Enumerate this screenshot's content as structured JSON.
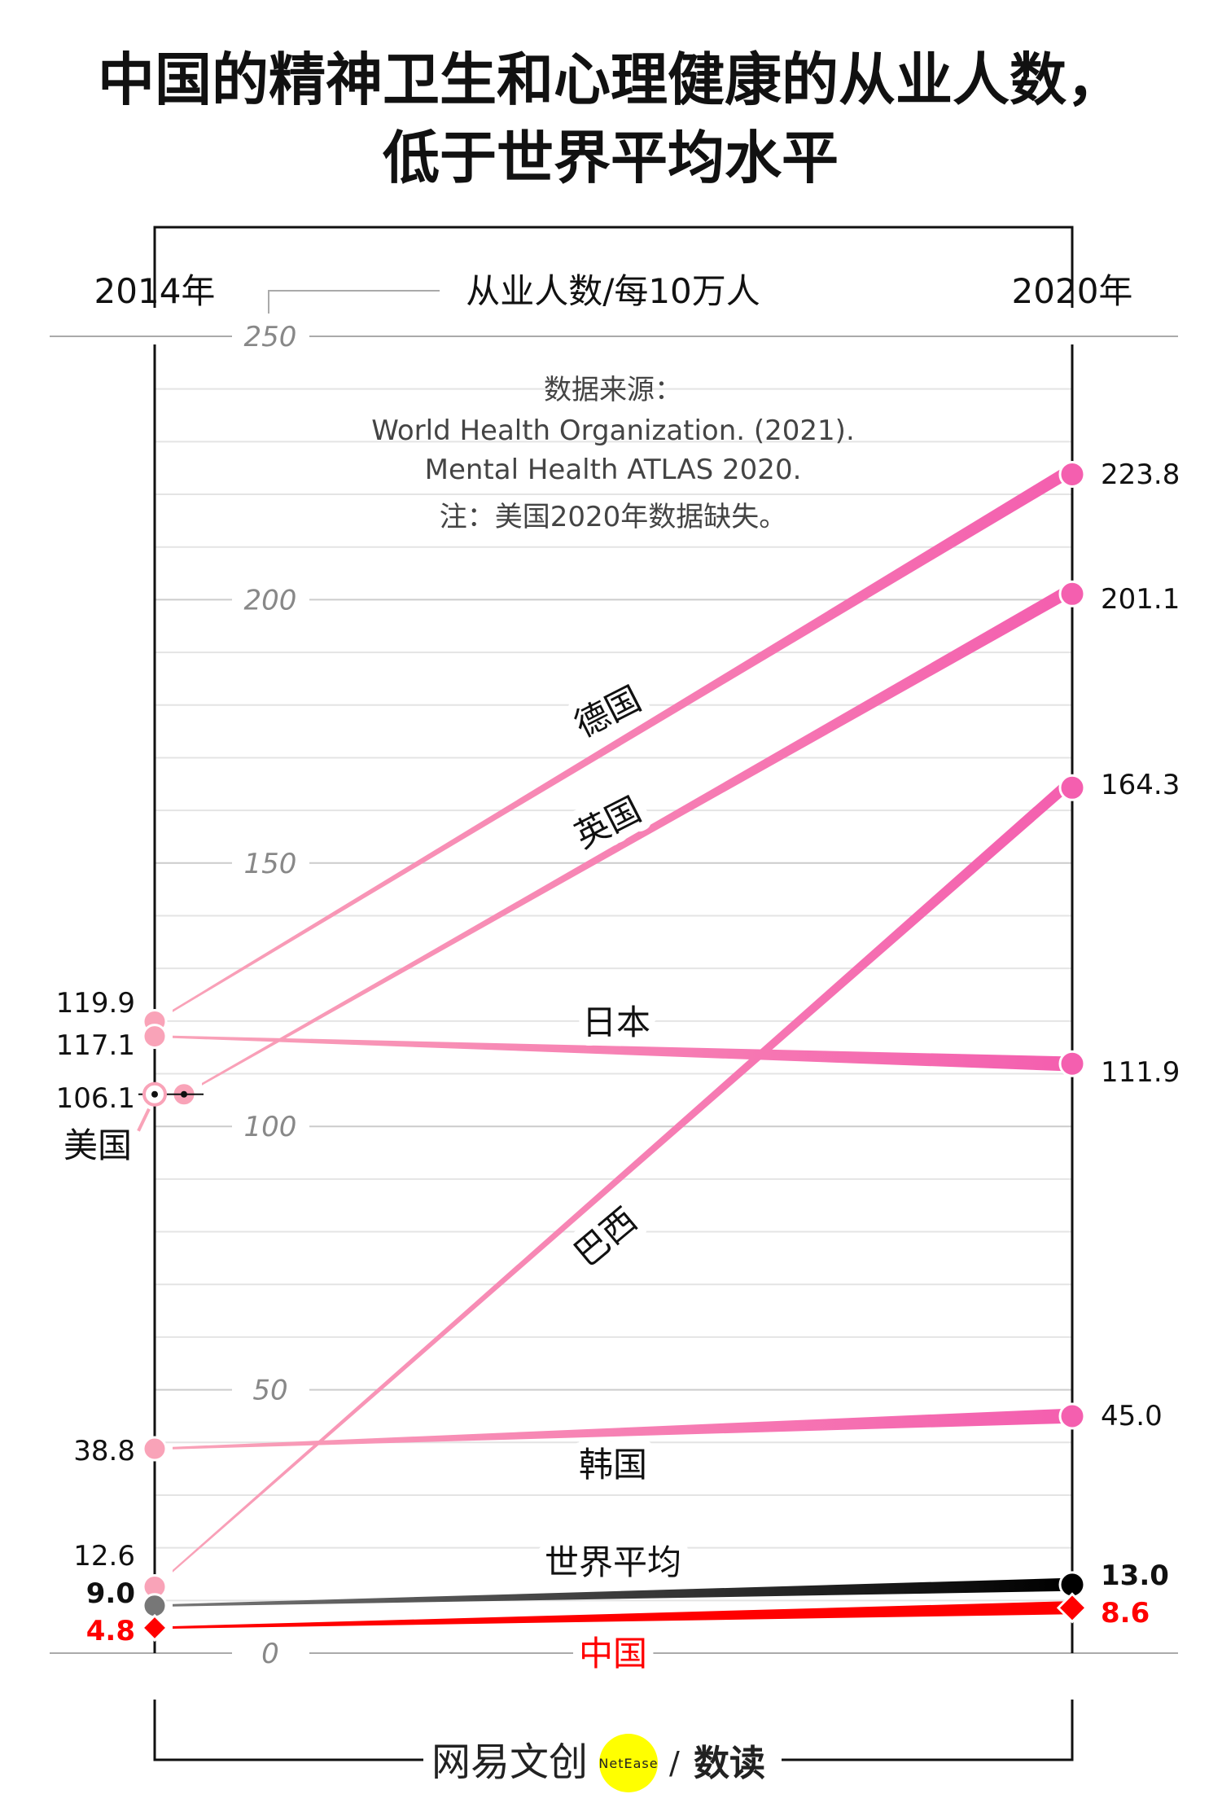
{
  "title": {
    "line1": "中国的精神卫生和心理健康的从业人数，",
    "line2": "低于世界平均水平"
  },
  "header": {
    "left_year": "2014年",
    "unit": "从业人数/每10万人",
    "right_year": "2020年"
  },
  "source": {
    "line1": "数据来源：",
    "line2": "World Health Organization. (2021).",
    "line3": "Mental Health ATLAS 2020.",
    "line4": "注：美国2020年数据缺失。"
  },
  "logo": {
    "brand": "网易文创",
    "badge": "NetEase",
    "slash": "/",
    "section": "数读"
  },
  "colors": {
    "pink_light": "#f9a3b8",
    "pink_dark": "#f45faf",
    "world": "#000000",
    "china": "#ff0000",
    "axis": "#111111",
    "grid": "#e4e4e4"
  },
  "chart_data": {
    "type": "line",
    "subtype": "slope",
    "x": [
      "2014年",
      "2020年"
    ],
    "ylabel": "从业人数/每10万人",
    "ylim": [
      0,
      250
    ],
    "yticks": [
      "0",
      "50",
      "100",
      "150",
      "200",
      "250"
    ],
    "grid": true,
    "series": [
      {
        "name": "德国",
        "values": [
          119.9,
          223.8
        ],
        "labels": [
          "119.9",
          "223.8"
        ],
        "color": "pink"
      },
      {
        "name": "英国",
        "values": [
          106.1,
          201.1
        ],
        "labels": [
          "",
          "201.1"
        ],
        "color": "pink"
      },
      {
        "name": "日本",
        "values": [
          117.1,
          111.9
        ],
        "labels": [
          "117.1",
          "111.9"
        ],
        "color": "pink"
      },
      {
        "name": "巴西",
        "values": [
          12.6,
          164.3
        ],
        "labels": [
          "12.6",
          "164.3"
        ],
        "color": "pink"
      },
      {
        "name": "韩国",
        "values": [
          38.8,
          45.0
        ],
        "labels": [
          "38.8",
          "45.0"
        ],
        "color": "pink"
      },
      {
        "name": "美国",
        "values": [
          106.1,
          null
        ],
        "labels": [
          "106.1",
          ""
        ],
        "color": "pink"
      },
      {
        "name": "世界平均",
        "values": [
          9.0,
          13.0
        ],
        "labels": [
          "9.0",
          "13.0"
        ],
        "color": "black"
      },
      {
        "name": "中国",
        "values": [
          4.8,
          8.6
        ],
        "labels": [
          "4.8",
          "8.6"
        ],
        "color": "red"
      }
    ]
  }
}
